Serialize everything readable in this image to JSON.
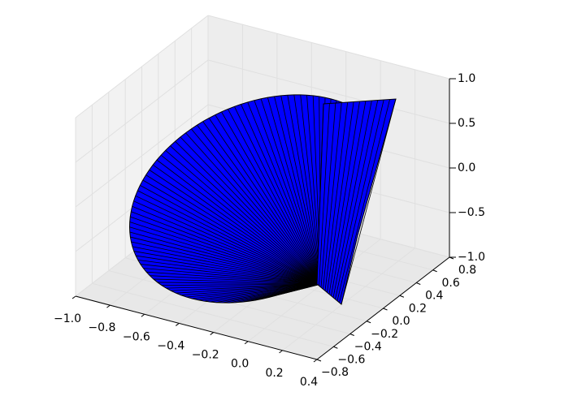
{
  "chart_data": {
    "type": "surface3d",
    "color": "#0000ff",
    "grid": true,
    "xlim": [
      -1.0,
      0.4
    ],
    "xticks": [
      {
        "value": -1.0,
        "label": "−1.0"
      },
      {
        "value": -0.8,
        "label": "−0.8"
      },
      {
        "value": -0.6,
        "label": "−0.6"
      },
      {
        "value": -0.4,
        "label": "−0.4"
      },
      {
        "value": -0.2,
        "label": "−0.2"
      },
      {
        "value": 0,
        "label": "0.0"
      },
      0.2,
      0.4
    ],
    "ylim": [
      -0.8,
      0.8
    ],
    "yticks": [
      {
        "value": -0.8,
        "label": "−0.8"
      },
      {
        "value": -0.6,
        "label": "−0.6"
      },
      {
        "value": -0.4,
        "label": "−0.4"
      },
      {
        "value": -0.2,
        "label": "−0.2"
      },
      {
        "value": 0,
        "label": "0.0"
      },
      0.2,
      0.4,
      0.6,
      0.8
    ],
    "zlim": [
      -1.0,
      1.0
    ],
    "zticks": [
      {
        "value": -1.0,
        "label": "−1.0"
      },
      {
        "value": -0.5,
        "label": "−0.5"
      },
      {
        "value": 0,
        "label": "0.0"
      },
      0.5,
      {
        "value": 1.0,
        "label": "1.0"
      }
    ]
  }
}
